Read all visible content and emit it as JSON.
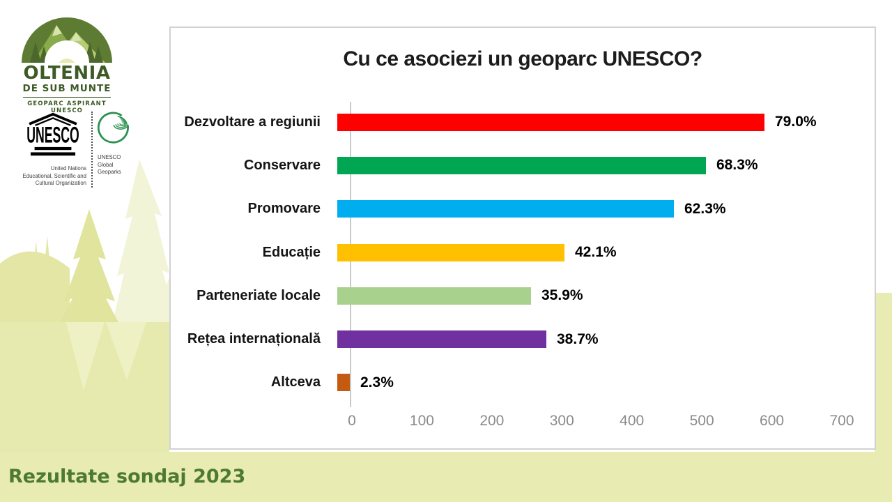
{
  "caption": "Rezultate sondaj 2023",
  "logo": {
    "title": "OLTENIA",
    "subtitle": "DE SUB MUNTE",
    "tagline": "GEOPARC ASPIRANT UNESCO"
  },
  "unesco": {
    "temple_label": "UNESCO",
    "org_lines": [
      "United Nations",
      "Educational, Scientific and",
      "Cultural Organization"
    ],
    "geoparks_lines": [
      "UNESCO",
      "Global",
      "Geoparks"
    ]
  },
  "chart_data": {
    "type": "bar",
    "orientation": "horizontal",
    "title": "Cu ce asociezi un geoparc UNESCO?",
    "categories": [
      "Dezvoltare a regiunii",
      "Conservare",
      "Promovare",
      "Educație",
      "Parteneriate locale",
      "Rețea internațională",
      "Altceva"
    ],
    "values": [
      610,
      527,
      481,
      325,
      277,
      299,
      18
    ],
    "value_labels": [
      "79.0%",
      "68.3%",
      "62.3%",
      "42.1%",
      "35.9%",
      "38.7%",
      "2.3%"
    ],
    "bar_colors": [
      "#ff0000",
      "#00a651",
      "#00aeef",
      "#ffc000",
      "#a9d18e",
      "#7030a0",
      "#c55a11"
    ],
    "xlabel": "",
    "ylabel": "",
    "xlim": [
      0,
      700
    ],
    "xticks": [
      "0",
      "100",
      "200",
      "300",
      "400",
      "500",
      "600",
      "700"
    ],
    "grid": false,
    "legend": false
  },
  "colors": {
    "background_yellow": "#e8ebb2",
    "tree_shade": "#e3e6a4",
    "tree_light": "#f2f4d8",
    "caption_green": "#4d7a33",
    "panel_border": "#d2d2d2",
    "axis_gray": "#c9c9c9",
    "tick_gray": "#8b8b8b",
    "logo_green_dark": "#3e5b26"
  }
}
